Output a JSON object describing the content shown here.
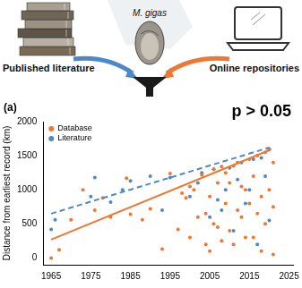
{
  "diagram": {
    "left_label": "Published literature",
    "right_label": "Online repositories",
    "species": "M. gigas"
  },
  "chart_data": {
    "type": "scatter",
    "panel_label": "(a)",
    "annotation": "p > 0.05",
    "y_label": "Distance from earliest record (km)",
    "xlim": [
      1963,
      2026
    ],
    "xticks": [
      1965,
      1975,
      1985,
      1995,
      2005,
      2015,
      2025
    ],
    "ylim": [
      -100,
      2000
    ],
    "yticks": [
      0,
      500,
      1000,
      1500,
      2000
    ],
    "grid": false,
    "legend": "top-left",
    "series": [
      {
        "name": "Database",
        "color": "#ee7733",
        "marker": "circle",
        "line_style": "solid",
        "x": [
          1965,
          1967,
          1970,
          1973,
          1976,
          1978,
          1980,
          1984,
          1985,
          1988,
          1990,
          1993,
          1995,
          1997,
          1998,
          1999,
          2000,
          2000,
          2001,
          2002,
          2003,
          2004,
          2004,
          2005,
          2005,
          2006,
          2006,
          2007,
          2007,
          2008,
          2008,
          2009,
          2009,
          2010,
          2010,
          2011,
          2011,
          2012,
          2012,
          2013,
          2013,
          2014,
          2014,
          2015,
          2015,
          2016,
          2016,
          2017,
          2017,
          2018,
          2018,
          2019,
          2019,
          2020,
          2020,
          2021,
          2021,
          2021
        ],
        "values": [
          0,
          120,
          560,
          1000,
          700,
          880,
          600,
          1170,
          640,
          560,
          720,
          130,
          1240,
          420,
          950,
          880,
          300,
          1050,
          1000,
          600,
          1220,
          650,
          200,
          100,
          900,
          1300,
          500,
          450,
          1100,
          1340,
          250,
          800,
          1250,
          1100,
          400,
          200,
          1350,
          1400,
          700,
          600,
          1050,
          1000,
          300,
          1450,
          800,
          300,
          1200,
          1500,
          650,
          900,
          100,
          1550,
          500,
          1590,
          1000,
          50,
          1400,
          750
        ],
        "trend": {
          "x": [
            1965,
            2020
          ],
          "values": [
            270,
            1580
          ]
        }
      },
      {
        "name": "Literature",
        "color": "#4d88c9",
        "marker": "circle",
        "line_style": "dashed",
        "x": [
          1965,
          1966,
          1975,
          1976,
          1980,
          1983,
          1985,
          1990,
          1993,
          1995,
          2000,
          2002,
          2003,
          2005,
          2006,
          2007,
          2008,
          2009,
          2010,
          2011,
          2012,
          2013,
          2014,
          2015,
          2016,
          2017,
          2018,
          2019,
          2020,
          2020
        ],
        "values": [
          420,
          560,
          900,
          1180,
          820,
          1000,
          1130,
          1200,
          700,
          1180,
          900,
          1100,
          1250,
          600,
          1300,
          850,
          700,
          1000,
          1320,
          400,
          1150,
          1400,
          800,
          1000,
          1450,
          200,
          1470,
          1200,
          1600,
          550
        ],
        "trend": {
          "x": [
            1965,
            2020
          ],
          "values": [
            650,
            1620
          ]
        }
      }
    ]
  }
}
